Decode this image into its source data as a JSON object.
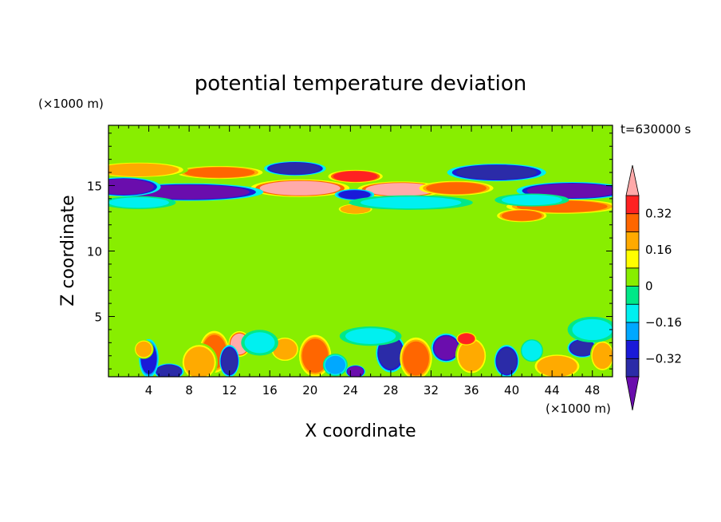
{
  "chart_data": {
    "type": "heatmap",
    "title": "potential temperature deviation",
    "xlabel": "X coordinate",
    "ylabel": "Z coordinate",
    "x_unit": "(×1000 m)",
    "y_unit": "(×1000 m)",
    "time_label": "t=630000 s",
    "xlim": [
      0,
      50
    ],
    "ylim": [
      0.4,
      19.6
    ],
    "x_ticks": [
      4,
      8,
      12,
      16,
      20,
      24,
      28,
      32,
      36,
      40,
      44,
      48
    ],
    "y_ticks": [
      5,
      10,
      15
    ],
    "colorbar": {
      "levels": [
        -0.48,
        -0.4,
        -0.32,
        -0.24,
        -0.16,
        -0.08,
        0,
        0.08,
        0.16,
        0.24,
        0.32,
        0.4
      ],
      "colors": [
        "#6a0dad",
        "#2b2ba8",
        "#1a1ad8",
        "#00a8ff",
        "#00f0f0",
        "#00e888",
        "#88ee00",
        "#ffff00",
        "#ffaa00",
        "#ff6600",
        "#ff2222",
        "#ffaaaa"
      ],
      "tick_labels": [
        "0.32",
        "0.16",
        "0",
        "−0.16",
        "−0.32"
      ],
      "tick_values": [
        0.32,
        0.16,
        0,
        -0.16,
        -0.32
      ],
      "extend": "both"
    },
    "background_value": 0.04,
    "features": [
      {
        "x": 19,
        "z": 14.8,
        "w": 4.0,
        "h": 0.55,
        "v": 0.44
      },
      {
        "x": 29,
        "z": 14.7,
        "w": 3.5,
        "h": 0.5,
        "v": 0.42
      },
      {
        "x": 24.5,
        "z": 15.7,
        "w": 2.2,
        "h": 0.4,
        "v": 0.38
      },
      {
        "x": 34.5,
        "z": 14.8,
        "w": 3.0,
        "h": 0.45,
        "v": 0.3
      },
      {
        "x": 11,
        "z": 16.0,
        "w": 3.5,
        "h": 0.4,
        "v": 0.3
      },
      {
        "x": 3,
        "z": 16.2,
        "w": 4.0,
        "h": 0.5,
        "v": 0.2
      },
      {
        "x": 8,
        "z": 14.5,
        "w": 6.0,
        "h": 0.55,
        "v": -0.44
      },
      {
        "x": 1.5,
        "z": 14.9,
        "w": 3.0,
        "h": 0.6,
        "v": -0.44
      },
      {
        "x": 18.5,
        "z": 16.3,
        "w": 2.5,
        "h": 0.45,
        "v": -0.4
      },
      {
        "x": 38.5,
        "z": 16.0,
        "w": 4.0,
        "h": 0.55,
        "v": -0.4
      },
      {
        "x": 46,
        "z": 14.6,
        "w": 4.5,
        "h": 0.55,
        "v": -0.44
      },
      {
        "x": 24.4,
        "z": 14.3,
        "w": 1.6,
        "h": 0.35,
        "v": -0.3
      },
      {
        "x": 45,
        "z": 13.4,
        "w": 4.5,
        "h": 0.45,
        "v": 0.3
      },
      {
        "x": 41,
        "z": 12.7,
        "w": 2.0,
        "h": 0.4,
        "v": 0.3
      },
      {
        "x": 24.5,
        "z": 13.2,
        "w": 1.5,
        "h": 0.35,
        "v": 0.2
      },
      {
        "x": 3,
        "z": 13.7,
        "w": 3.0,
        "h": 0.4,
        "v": -0.1
      },
      {
        "x": 30,
        "z": 13.7,
        "w": 5.0,
        "h": 0.45,
        "v": -0.1
      },
      {
        "x": 42,
        "z": 13.9,
        "w": 3.0,
        "h": 0.4,
        "v": -0.1
      },
      {
        "x": 10.5,
        "z": 2.3,
        "w": 1.2,
        "h": 1.3,
        "v": 0.3
      },
      {
        "x": 9,
        "z": 1.5,
        "w": 1.5,
        "h": 1.2,
        "v": 0.22
      },
      {
        "x": 6,
        "z": 0.8,
        "w": 1.2,
        "h": 0.5,
        "v": -0.4
      },
      {
        "x": 4,
        "z": 1.8,
        "w": 0.8,
        "h": 1.2,
        "v": -0.3
      },
      {
        "x": 3.5,
        "z": 2.5,
        "w": 0.8,
        "h": 0.6,
        "v": 0.2
      },
      {
        "x": 13,
        "z": 2.9,
        "w": 0.9,
        "h": 0.8,
        "v": 0.44
      },
      {
        "x": 12,
        "z": 1.6,
        "w": 0.8,
        "h": 1.0,
        "v": -0.4
      },
      {
        "x": 17.5,
        "z": 2.5,
        "w": 1.2,
        "h": 0.8,
        "v": 0.2
      },
      {
        "x": 20.5,
        "z": 2.0,
        "w": 1.3,
        "h": 1.3,
        "v": 0.25
      },
      {
        "x": 22.5,
        "z": 1.3,
        "w": 1.0,
        "h": 0.7,
        "v": -0.2
      },
      {
        "x": 24.5,
        "z": 0.8,
        "w": 0.8,
        "h": 0.4,
        "v": -0.44
      },
      {
        "x": 28,
        "z": 2.2,
        "w": 1.2,
        "h": 1.2,
        "v": -0.4
      },
      {
        "x": 30.5,
        "z": 1.8,
        "w": 1.3,
        "h": 1.3,
        "v": 0.25
      },
      {
        "x": 33.5,
        "z": 2.6,
        "w": 1.2,
        "h": 0.9,
        "v": -0.44
      },
      {
        "x": 36,
        "z": 2.0,
        "w": 1.3,
        "h": 1.2,
        "v": 0.22
      },
      {
        "x": 35.5,
        "z": 3.3,
        "w": 0.8,
        "h": 0.4,
        "v": 0.35
      },
      {
        "x": 39.5,
        "z": 1.6,
        "w": 1.0,
        "h": 1.0,
        "v": -0.4
      },
      {
        "x": 44.5,
        "z": 1.2,
        "w": 2.0,
        "h": 0.8,
        "v": 0.2
      },
      {
        "x": 47,
        "z": 2.6,
        "w": 1.2,
        "h": 0.6,
        "v": -0.4
      },
      {
        "x": 49,
        "z": 2.0,
        "w": 1.0,
        "h": 1.0,
        "v": 0.2
      },
      {
        "x": 42,
        "z": 2.4,
        "w": 0.9,
        "h": 0.7,
        "v": -0.15
      },
      {
        "x": 26,
        "z": 3.5,
        "w": 2.5,
        "h": 0.6,
        "v": -0.1
      },
      {
        "x": 15,
        "z": 3.0,
        "w": 1.5,
        "h": 0.8,
        "v": -0.1
      },
      {
        "x": 48,
        "z": 4.0,
        "w": 2.0,
        "h": 0.8,
        "v": -0.1
      }
    ]
  }
}
